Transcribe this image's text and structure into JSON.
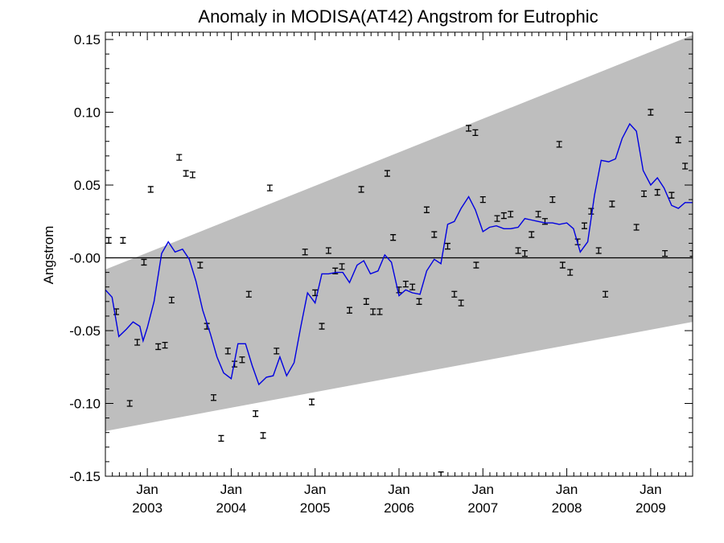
{
  "chart_data": {
    "type": "scatter",
    "title": "Anomaly in MODISA(AT42) Angstrom for Eutrophic",
    "xlabel": "",
    "ylabel": "Angstrom",
    "xlim": [
      2002.5,
      2009.5
    ],
    "ylim": [
      -0.15,
      0.155
    ],
    "yticks": [
      {
        "value": 0.15,
        "label": "0.15"
      },
      {
        "value": 0.1,
        "label": "0.10"
      },
      {
        "value": 0.05,
        "label": "0.05"
      },
      {
        "value": 0.0,
        "label": "-0.00"
      },
      {
        "value": -0.05,
        "label": "-0.05"
      },
      {
        "value": -0.1,
        "label": "-0.10"
      },
      {
        "value": -0.15,
        "label": "-0.15"
      }
    ],
    "xticks": [
      {
        "value": 2003.0,
        "month": "Jan",
        "year": "2003"
      },
      {
        "value": 2004.0,
        "month": "Jan",
        "year": "2004"
      },
      {
        "value": 2005.0,
        "month": "Jan",
        "year": "2005"
      },
      {
        "value": 2006.0,
        "month": "Jan",
        "year": "2006"
      },
      {
        "value": 2007.0,
        "month": "Jan",
        "year": "2007"
      },
      {
        "value": 2008.0,
        "month": "Jan",
        "year": "2008"
      },
      {
        "value": 2009.0,
        "month": "Jan",
        "year": "2009"
      }
    ],
    "zero_line": 0.0,
    "band": {
      "upper": [
        [
          2002.5,
          -0.008
        ],
        [
          2009.5,
          0.153
        ]
      ],
      "lower": [
        [
          2002.5,
          -0.119
        ],
        [
          2009.5,
          -0.044
        ]
      ],
      "color": "#bebebe"
    },
    "points": [
      [
        2002.54,
        0.012
      ],
      [
        2002.63,
        -0.037
      ],
      [
        2002.71,
        0.012
      ],
      [
        2002.79,
        -0.1
      ],
      [
        2002.88,
        -0.058
      ],
      [
        2002.96,
        -0.003
      ],
      [
        2003.04,
        0.047
      ],
      [
        2003.13,
        -0.061
      ],
      [
        2003.21,
        -0.06
      ],
      [
        2003.29,
        -0.029
      ],
      [
        2003.38,
        0.069
      ],
      [
        2003.46,
        0.058
      ],
      [
        2003.54,
        0.057
      ],
      [
        2003.63,
        -0.005
      ],
      [
        2003.71,
        -0.047
      ],
      [
        2003.79,
        -0.096
      ],
      [
        2003.88,
        -0.124
      ],
      [
        2003.96,
        -0.064
      ],
      [
        2004.04,
        -0.073
      ],
      [
        2004.13,
        -0.07
      ],
      [
        2004.21,
        -0.025
      ],
      [
        2004.29,
        -0.107
      ],
      [
        2004.38,
        -0.122
      ],
      [
        2004.46,
        0.048
      ],
      [
        2004.54,
        -0.064
      ],
      [
        2004.88,
        0.004
      ],
      [
        2004.96,
        -0.099
      ],
      [
        2005.0,
        -0.024
      ],
      [
        2005.08,
        -0.047
      ],
      [
        2005.16,
        0.005
      ],
      [
        2005.24,
        -0.009
      ],
      [
        2005.32,
        -0.006
      ],
      [
        2005.41,
        -0.036
      ],
      [
        2005.55,
        0.047
      ],
      [
        2005.61,
        -0.03
      ],
      [
        2005.69,
        -0.037
      ],
      [
        2005.77,
        -0.037
      ],
      [
        2005.86,
        0.058
      ],
      [
        2005.93,
        0.014
      ],
      [
        2006.0,
        -0.022
      ],
      [
        2006.08,
        -0.018
      ],
      [
        2006.16,
        -0.02
      ],
      [
        2006.24,
        -0.03
      ],
      [
        2006.33,
        0.033
      ],
      [
        2006.42,
        0.016
      ],
      [
        2006.5,
        -0.149
      ],
      [
        2006.58,
        0.008
      ],
      [
        2006.66,
        -0.025
      ],
      [
        2006.74,
        -0.031
      ],
      [
        2006.83,
        0.089
      ],
      [
        2006.91,
        0.086
      ],
      [
        2006.92,
        -0.005
      ],
      [
        2007.0,
        0.04
      ],
      [
        2007.17,
        0.027
      ],
      [
        2007.25,
        0.029
      ],
      [
        2007.33,
        0.03
      ],
      [
        2007.42,
        0.005
      ],
      [
        2007.5,
        0.003
      ],
      [
        2007.58,
        0.016
      ],
      [
        2007.66,
        0.03
      ],
      [
        2007.74,
        0.025
      ],
      [
        2007.83,
        0.04
      ],
      [
        2007.91,
        0.078
      ],
      [
        2007.95,
        -0.005
      ],
      [
        2008.04,
        -0.01
      ],
      [
        2008.13,
        0.011
      ],
      [
        2008.21,
        0.022
      ],
      [
        2008.29,
        0.032
      ],
      [
        2008.38,
        0.005
      ],
      [
        2008.46,
        -0.025
      ],
      [
        2008.54,
        0.037
      ],
      [
        2008.83,
        0.021
      ],
      [
        2008.92,
        0.044
      ],
      [
        2009.0,
        0.1
      ],
      [
        2009.08,
        0.045
      ],
      [
        2009.17,
        0.003
      ],
      [
        2009.25,
        0.043
      ],
      [
        2009.33,
        0.081
      ],
      [
        2009.41,
        0.063
      ],
      [
        2009.5,
        0.003
      ]
    ],
    "series": [
      {
        "color": "#0000e0",
        "x": [
          2002.5,
          2002.58,
          2002.66,
          2002.75,
          2002.83,
          2002.91,
          2002.95,
          2003.0,
          2003.08,
          2003.17,
          2003.25,
          2003.33,
          2003.42,
          2003.5,
          2003.58,
          2003.66,
          2003.75,
          2003.83,
          2003.91,
          2004.0,
          2004.08,
          2004.17,
          2004.25,
          2004.33,
          2004.42,
          2004.5,
          2004.58,
          2004.66,
          2004.75,
          2004.83,
          2004.91,
          2005.0,
          2005.08,
          2005.16,
          2005.25,
          2005.33,
          2005.41,
          2005.5,
          2005.58,
          2005.66,
          2005.75,
          2005.83,
          2005.91,
          2006.0,
          2006.08,
          2006.16,
          2006.25,
          2006.33,
          2006.42,
          2006.5,
          2006.58,
          2006.66,
          2006.74,
          2006.83,
          2006.91,
          2007.0,
          2007.08,
          2007.16,
          2007.25,
          2007.33,
          2007.42,
          2007.5,
          2007.58,
          2007.66,
          2007.74,
          2007.83,
          2007.91,
          2008.0,
          2008.08,
          2008.16,
          2008.25,
          2008.33,
          2008.41,
          2008.5,
          2008.58,
          2008.66,
          2008.75,
          2008.83,
          2008.91,
          2009.0,
          2009.08,
          2009.16,
          2009.25,
          2009.33,
          2009.41,
          2009.5
        ],
        "y": [
          -0.022,
          -0.027,
          -0.054,
          -0.049,
          -0.044,
          -0.047,
          -0.057,
          -0.048,
          -0.03,
          0.003,
          0.011,
          0.004,
          0.006,
          -0.001,
          -0.016,
          -0.036,
          -0.052,
          -0.068,
          -0.079,
          -0.083,
          -0.059,
          -0.059,
          -0.074,
          -0.087,
          -0.082,
          -0.081,
          -0.068,
          -0.081,
          -0.072,
          -0.047,
          -0.024,
          -0.031,
          -0.011,
          -0.011,
          -0.01,
          -0.01,
          -0.017,
          -0.005,
          -0.002,
          -0.011,
          -0.009,
          0.002,
          -0.003,
          -0.026,
          -0.022,
          -0.024,
          -0.025,
          -0.009,
          -0.001,
          -0.004,
          0.023,
          0.025,
          0.034,
          0.042,
          0.033,
          0.018,
          0.021,
          0.022,
          0.02,
          0.02,
          0.021,
          0.027,
          0.026,
          0.025,
          0.024,
          0.024,
          0.023,
          0.024,
          0.02,
          0.004,
          0.011,
          0.043,
          0.067,
          0.066,
          0.068,
          0.082,
          0.092,
          0.087,
          0.06,
          0.05,
          0.055,
          0.048,
          0.036,
          0.034,
          0.038,
          0.038
        ]
      }
    ]
  }
}
